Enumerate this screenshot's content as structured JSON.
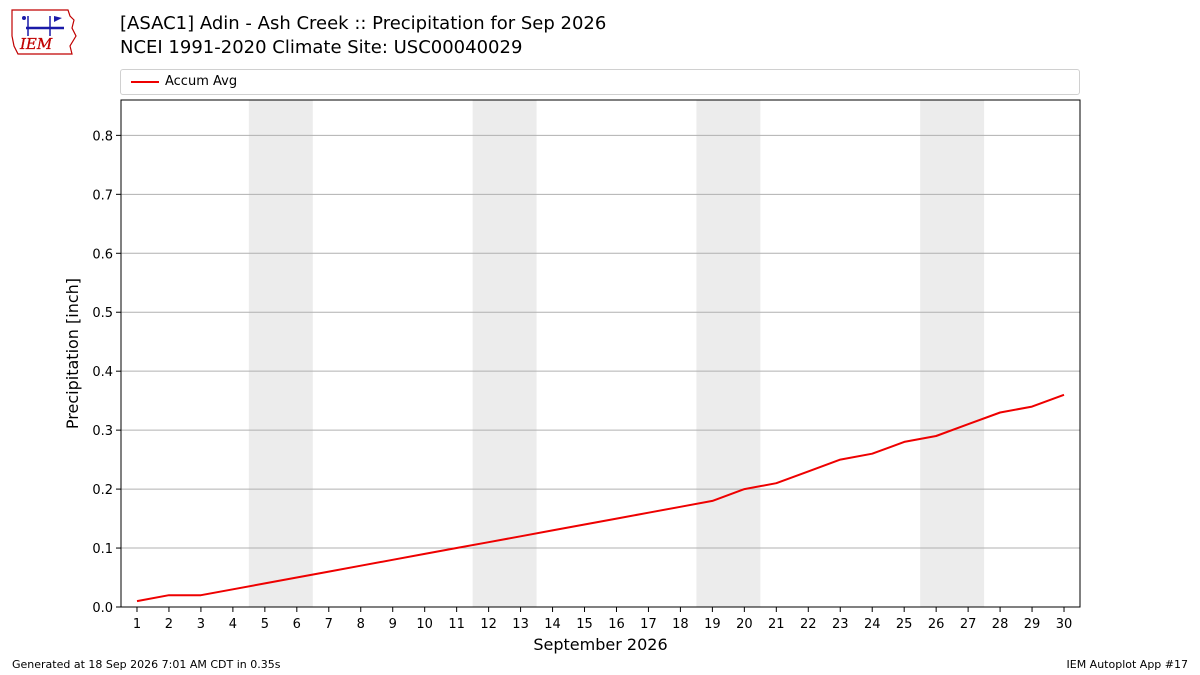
{
  "header": {
    "title_line1": "[ASAC1] Adin - Ash Creek :: Precipitation for Sep 2026",
    "title_line2": "NCEI 1991-2020 Climate Site: USC00040029"
  },
  "logo": {
    "text": "IEM",
    "color": "#1a1aa8",
    "outline": "#c00000"
  },
  "footer": {
    "left": "Generated at 18 Sep 2026 7:01 AM CDT in 0.35s",
    "right": "IEM Autoplot App #17"
  },
  "chart_data": {
    "type": "line",
    "xlabel": "September 2026",
    "ylabel": "Precipitation [inch]",
    "x": [
      1,
      2,
      3,
      4,
      5,
      6,
      7,
      8,
      9,
      10,
      11,
      12,
      13,
      14,
      15,
      16,
      17,
      18,
      19,
      20,
      21,
      22,
      23,
      24,
      25,
      26,
      27,
      28,
      29,
      30
    ],
    "xlim": [
      0.5,
      30.5
    ],
    "ylim": [
      0,
      0.86
    ],
    "yticks": [
      0.0,
      0.1,
      0.2,
      0.3,
      0.4,
      0.5,
      0.6,
      0.7,
      0.8
    ],
    "grid": "y",
    "legend": "top",
    "weekend_shading": [
      [
        5,
        6
      ],
      [
        12,
        13
      ],
      [
        19,
        20
      ],
      [
        26,
        27
      ]
    ],
    "shade_color": "#ececec",
    "series": [
      {
        "name": "Accum Avg",
        "color": "#ee0000",
        "values": [
          0.01,
          0.02,
          0.02,
          0.03,
          0.04,
          0.05,
          0.06,
          0.07,
          0.08,
          0.09,
          0.1,
          0.11,
          0.12,
          0.13,
          0.14,
          0.15,
          0.16,
          0.17,
          0.18,
          0.2,
          0.21,
          0.23,
          0.25,
          0.26,
          0.28,
          0.29,
          0.31,
          0.33,
          0.34,
          0.36
        ]
      }
    ]
  }
}
